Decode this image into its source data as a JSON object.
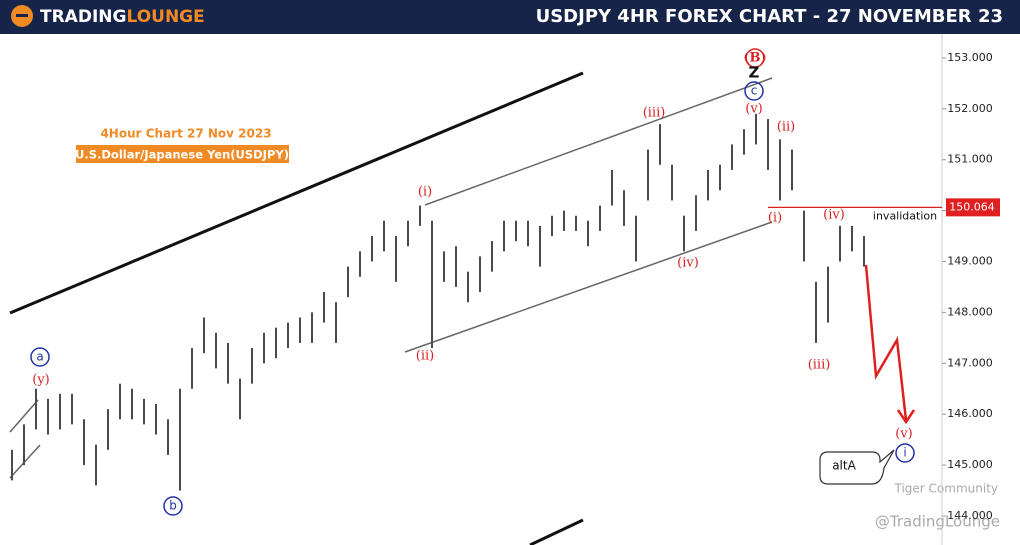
{
  "chart_data": {
    "type": "ohlc",
    "logo": [
      "Trading",
      "Lounge"
    ],
    "title": "USDJPY 4HR FOREX CHART - 27 NOVEMBER 23",
    "subtitle": "4Hour Chart 27 Nov 2023",
    "instrument": "U.S.Dollar/Japanese Yen(USDJPY)",
    "color": "#4a4a4a",
    "high": [
      145.3,
      145.8,
      146.5,
      146.3,
      146.4,
      146.4,
      145.9,
      145.4,
      146.1,
      146.6,
      146.5,
      146.3,
      146.2,
      145.9,
      146.5,
      147.3,
      147.9,
      147.6,
      147.4,
      146.7,
      147.3,
      147.6,
      147.7,
      147.8,
      147.9,
      148.0,
      148.4,
      148.2,
      148.9,
      149.2,
      149.5,
      149.8,
      149.5,
      149.8,
      150.1,
      149.8,
      149.2,
      149.3,
      148.8,
      149.1,
      149.4,
      149.8,
      149.8,
      149.8,
      149.7,
      149.9,
      150.0,
      149.9,
      149.8,
      150.1,
      150.8,
      150.4,
      149.9,
      151.2,
      151.7,
      150.9,
      149.9,
      150.3,
      150.8,
      150.9,
      151.3,
      151.6,
      151.9,
      151.8,
      151.4,
      151.2,
      150.0,
      148.6,
      148.9,
      149.7,
      149.7,
      149.5
    ],
    "low": [
      144.7,
      145.0,
      145.7,
      145.6,
      145.7,
      145.8,
      145.0,
      144.6,
      145.3,
      145.9,
      145.9,
      145.8,
      145.6,
      145.2,
      144.5,
      146.5,
      147.2,
      146.9,
      146.6,
      145.9,
      146.6,
      147.0,
      147.1,
      147.3,
      147.4,
      147.4,
      147.8,
      147.4,
      148.3,
      148.7,
      149.0,
      149.2,
      148.6,
      149.3,
      149.7,
      147.3,
      148.6,
      148.5,
      148.2,
      148.4,
      148.8,
      149.2,
      149.4,
      149.3,
      148.9,
      149.5,
      149.6,
      149.6,
      149.3,
      149.6,
      150.1,
      149.7,
      149.0,
      150.2,
      150.9,
      150.2,
      149.2,
      149.6,
      150.2,
      150.4,
      150.8,
      151.1,
      151.3,
      150.8,
      150.2,
      150.4,
      149.0,
      147.4,
      147.8,
      149.0,
      149.2,
      148.9
    ],
    "ylim": [
      143.43,
      153.47
    ],
    "yticks": [
      {
        "value": 144,
        "label": "144.000"
      },
      {
        "value": 145,
        "label": "145.000"
      },
      {
        "value": 146,
        "label": "146.000"
      },
      {
        "value": 147,
        "label": "147.000"
      },
      {
        "value": 148,
        "label": "148.000"
      },
      {
        "value": 149,
        "label": "149.000"
      },
      {
        "value": 150,
        "label": "150.000"
      },
      {
        "value": 151,
        "label": "151.000"
      },
      {
        "value": 152,
        "label": "152.000"
      },
      {
        "value": 153,
        "label": "153.000"
      }
    ],
    "invalidation_level": 150.064,
    "invalidation_label": "invalidation",
    "wave_labels": [
      "(B)",
      "Z",
      "c",
      "(v)",
      "(ii)",
      "(iii)",
      "(i)",
      "(ii)",
      "(iv)",
      "(i)",
      "(iv)",
      "(iii)",
      "(v)",
      "i",
      "a",
      "(y)",
      "b",
      "altA"
    ],
    "watermarks": [
      "Tiger Community",
      "@TradingLounge"
    ]
  }
}
